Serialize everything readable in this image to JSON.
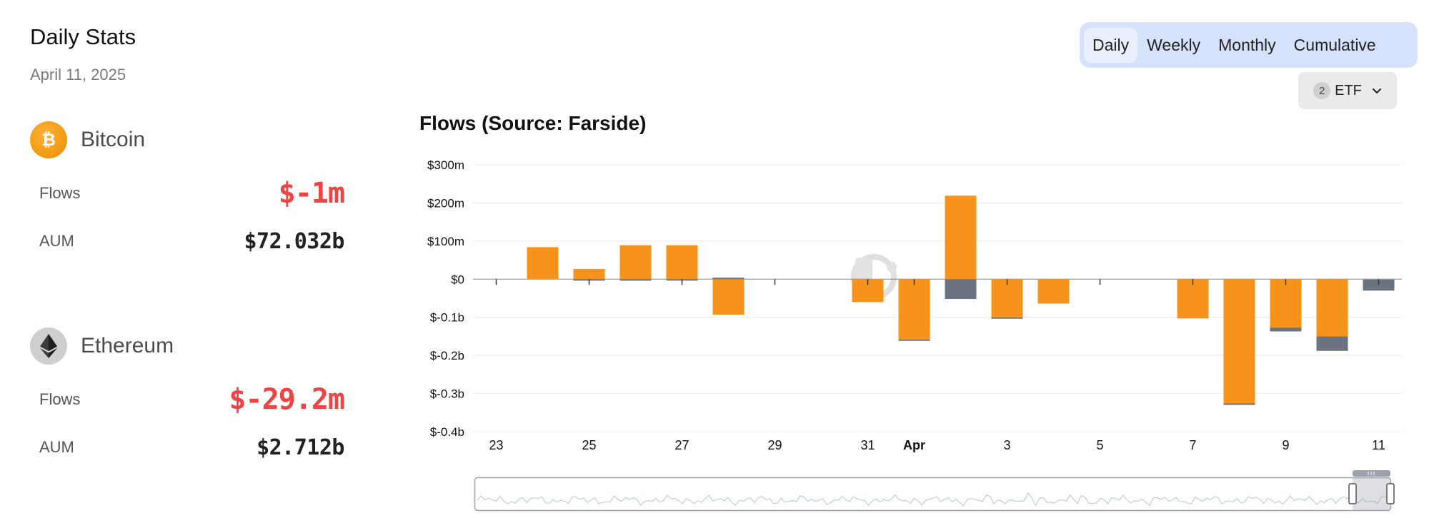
{
  "stats": {
    "title": "Daily Stats",
    "date": "April 11, 2025"
  },
  "assets": [
    {
      "name": "Bitcoin",
      "icon": "bitcoin-icon",
      "flows_label": "Flows",
      "flows_value": "$-1m",
      "aum_label": "AUM",
      "aum_value": "$72.032b"
    },
    {
      "name": "Ethereum",
      "icon": "ethereum-icon",
      "flows_label": "Flows",
      "flows_value": "$-29.2m",
      "aum_label": "AUM",
      "aum_value": "$2.712b"
    }
  ],
  "tabs": [
    "Daily",
    "Weekly",
    "Monthly",
    "Cumulative"
  ],
  "active_tab": "Daily",
  "etf_filter": {
    "count": "2",
    "label": "ETF"
  },
  "colors": {
    "bitcoin": "#f7931a",
    "ethereum": "#6b7280",
    "negative": "#ef4444",
    "tabs_bg": "#d6e2fb"
  },
  "chart_data": {
    "type": "bar",
    "stacked": true,
    "title": "Flows (Source: Farside)",
    "ylim": [
      -400,
      300
    ],
    "y_ticks": [
      {
        "value": 300,
        "label": "$300m"
      },
      {
        "value": 200,
        "label": "$200m"
      },
      {
        "value": 100,
        "label": "$100m"
      },
      {
        "value": 0,
        "label": "$0"
      },
      {
        "value": -100,
        "label": "$-0.1b"
      },
      {
        "value": -200,
        "label": "$-0.2b"
      },
      {
        "value": -300,
        "label": "$-0.3b"
      },
      {
        "value": -400,
        "label": "$-0.4b"
      }
    ],
    "x_ticks": [
      {
        "index": 0,
        "label": "23"
      },
      {
        "index": 2,
        "label": "25"
      },
      {
        "index": 4,
        "label": "27"
      },
      {
        "index": 6,
        "label": "29"
      },
      {
        "index": 8,
        "label": "31"
      },
      {
        "index": 9,
        "label": "Apr",
        "bold": true
      },
      {
        "index": 11,
        "label": "3"
      },
      {
        "index": 13,
        "label": "5"
      },
      {
        "index": 15,
        "label": "7"
      },
      {
        "index": 17,
        "label": "9"
      },
      {
        "index": 19,
        "label": "11"
      }
    ],
    "categories": [
      "Mar 23",
      "Mar 24",
      "Mar 25",
      "Mar 26",
      "Mar 27",
      "Mar 28",
      "Mar 29",
      "Mar 30",
      "Mar 31",
      "Apr 1",
      "Apr 2",
      "Apr 3",
      "Apr 4",
      "Apr 5",
      "Apr 6",
      "Apr 7",
      "Apr 8",
      "Apr 9",
      "Apr 10",
      "Apr 11"
    ],
    "series": [
      {
        "name": "Bitcoin",
        "color": "#f7931a",
        "values": [
          0,
          84,
          27,
          89,
          89,
          -93,
          0,
          0,
          -60,
          -158,
          219,
          -100,
          -64,
          0,
          0,
          -103,
          -326,
          -127,
          -150,
          -1
        ]
      },
      {
        "name": "Ethereum",
        "color": "#6b7280",
        "values": [
          0,
          0,
          -3,
          -4,
          -3,
          4,
          0,
          0,
          0,
          -3,
          -52,
          -3,
          0,
          0,
          0,
          0,
          -3,
          -10,
          -38,
          -29
        ]
      }
    ]
  }
}
